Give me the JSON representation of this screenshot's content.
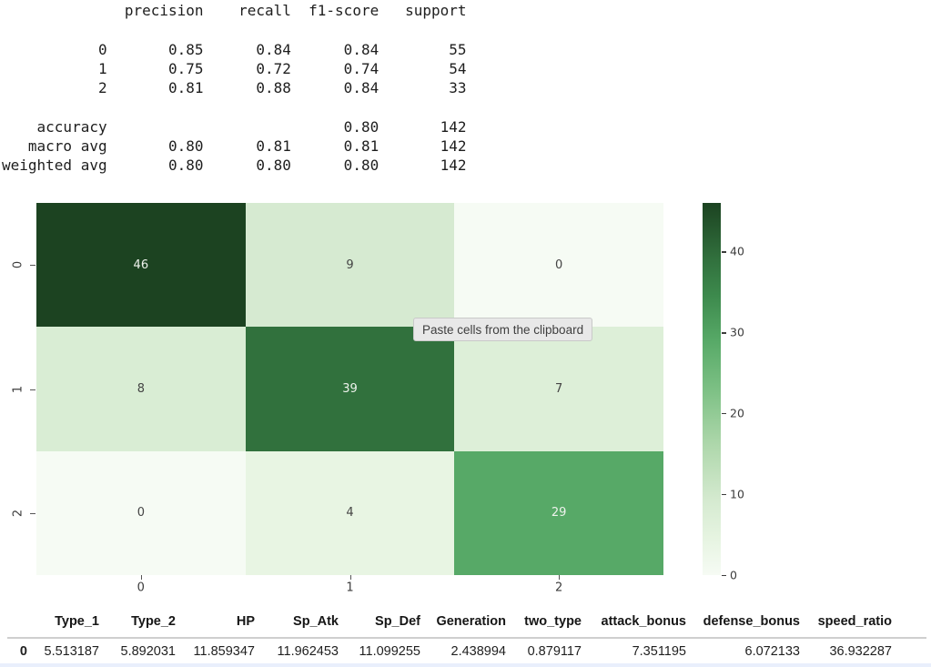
{
  "report": {
    "text": "              precision    recall  f1-score   support\n\n           0       0.85      0.84      0.84        55\n           1       0.75      0.72      0.74        54\n           2       0.81      0.88      0.84        33\n\n    accuracy                           0.80       142\n   macro avg       0.80      0.81      0.81       142\nweighted avg       0.80      0.80      0.80       142"
  },
  "tooltip": {
    "label": "Paste cells from the clipboard"
  },
  "chart_data": {
    "type": "heatmap",
    "title": "",
    "x_tick_labels": [
      "0",
      "1",
      "2"
    ],
    "y_tick_labels": [
      "0",
      "1",
      "2"
    ],
    "matrix": [
      [
        46,
        9,
        0
      ],
      [
        8,
        39,
        7
      ],
      [
        0,
        4,
        29
      ]
    ],
    "vmin": 0,
    "vmax": 46,
    "colorbar_ticks": [
      0,
      10,
      20,
      30,
      40
    ],
    "colormap_name": "Greens",
    "colormap_stops": [
      [
        0.0,
        "#f6fbf4"
      ],
      [
        0.1,
        "#e6f4e1"
      ],
      [
        0.2,
        "#d5ead0"
      ],
      [
        0.35,
        "#aed7ab"
      ],
      [
        0.5,
        "#7cc084"
      ],
      [
        0.63,
        "#57a967"
      ],
      [
        0.75,
        "#3d8a4d"
      ],
      [
        0.85,
        "#31703d"
      ],
      [
        1.0,
        "#1c4321"
      ]
    ],
    "annot_dark_text": "#444444",
    "annot_light_text": "#eef2ec"
  },
  "dataframe": {
    "index_header": "",
    "columns": [
      "Type_1",
      "Type_2",
      "HP",
      "Sp_Atk",
      "Sp_Def",
      "Generation",
      "two_type",
      "attack_bonus",
      "defense_bonus",
      "speed_ratio"
    ],
    "rows": [
      {
        "index": "0",
        "values": [
          "5.513187",
          "5.892031",
          "11.859347",
          "11.962453",
          "11.099255",
          "2.438994",
          "0.879117",
          "7.351195",
          "6.072133",
          "36.932287"
        ]
      }
    ]
  }
}
